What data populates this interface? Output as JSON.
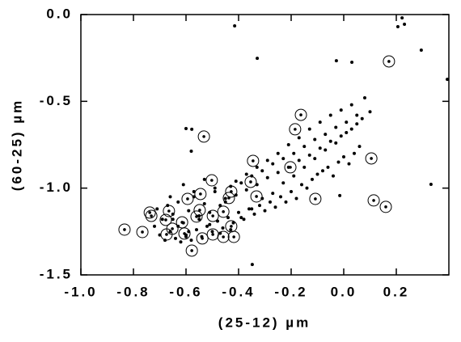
{
  "chart_data": {
    "type": "scatter",
    "xlabel": "(25-12)   µm",
    "ylabel": "(60-25)   µm",
    "xlim": [
      -1.0,
      0.4
    ],
    "ylim": [
      -1.5,
      0
    ],
    "xticks": [
      {
        "value": -1.0,
        "label": "-1.0"
      },
      -0.8,
      -0.6,
      -0.4,
      -0.2,
      {
        "value": 0,
        "label": "0.0"
      },
      0.2
    ],
    "yticks": [
      {
        "value": 0,
        "label": "0.0"
      },
      -0.5,
      {
        "value": -1.0,
        "label": "-1.0"
      },
      -1.5
    ],
    "series": [
      {
        "marker": "dot",
        "color": "#000000",
        "x": [
          -0.72,
          -0.7,
          -0.68,
          -0.66,
          -0.64,
          -0.62,
          -0.6,
          -0.58,
          -0.56,
          -0.54,
          -0.52,
          -0.5,
          -0.48,
          -0.46,
          -0.44,
          -0.42,
          -0.4,
          -0.38,
          -0.36,
          -0.34,
          -0.32,
          -0.3,
          -0.28,
          -0.26,
          -0.24,
          -0.22,
          -0.2,
          -0.18,
          -0.16,
          -0.14,
          -0.12,
          -0.1,
          -0.08,
          -0.06,
          -0.04,
          -0.02,
          0.0,
          0.02,
          0.04,
          0.06,
          -0.71,
          -0.69,
          -0.67,
          -0.65,
          -0.63,
          -0.61,
          -0.59,
          -0.57,
          -0.55,
          -0.53,
          -0.51,
          -0.49,
          -0.47,
          -0.45,
          -0.43,
          -0.41,
          -0.39,
          -0.37,
          -0.35,
          -0.33,
          -0.31,
          -0.29,
          -0.27,
          -0.25,
          -0.23,
          -0.21,
          -0.19,
          -0.17,
          -0.15,
          -0.13,
          -0.11,
          -0.09,
          -0.07,
          -0.05,
          -0.03,
          -0.01,
          0.01,
          0.03,
          0.05,
          0.07,
          -0.66,
          -0.63,
          -0.61,
          -0.59,
          -0.57,
          -0.55,
          -0.53,
          -0.51,
          -0.49,
          -0.47,
          -0.45,
          -0.43,
          -0.41,
          -0.39,
          -0.37,
          -0.35,
          -0.33,
          -0.31,
          -0.29,
          -0.27,
          -0.25,
          -0.23,
          -0.21,
          -0.19,
          -0.17,
          -0.15,
          -0.13,
          -0.11,
          -0.09,
          -0.07,
          -0.05,
          -0.03,
          -0.01,
          0.01,
          0.03,
          0.05,
          0.08,
          0.1,
          -0.65,
          -0.6,
          -0.415,
          -0.329,
          -0.028,
          0.031,
          0.206,
          0.222,
          0.231,
          0.295,
          0.394,
          0.332,
          -0.015,
          -0.6,
          -0.578,
          -0.348,
          -0.58
        ],
        "y": [
          -1.22,
          -1.27,
          -1.3,
          -1.25,
          -1.29,
          -1.31,
          -1.27,
          -1.3,
          -1.24,
          -1.28,
          -1.22,
          -1.25,
          -1.19,
          -1.23,
          -1.17,
          -1.2,
          -1.14,
          -1.18,
          -1.12,
          -1.15,
          -1.1,
          -1.13,
          -1.08,
          -1.11,
          -1.05,
          -1.08,
          -1.02,
          -1.06,
          -0.98,
          -1.0,
          -0.95,
          -0.92,
          -0.9,
          -0.88,
          -0.93,
          -0.85,
          -0.82,
          -0.86,
          -0.8,
          -0.76,
          -1.12,
          -1.18,
          -1.1,
          -1.15,
          -1.08,
          -1.2,
          -1.13,
          -1.05,
          -1.16,
          -1.09,
          -1.14,
          -1.02,
          -1.1,
          -1.06,
          -0.99,
          -1.04,
          -0.97,
          -1.01,
          -0.93,
          -0.98,
          -0.9,
          -0.94,
          -0.86,
          -0.91,
          -0.83,
          -0.88,
          -0.8,
          -0.84,
          -0.76,
          -0.81,
          -0.72,
          -0.77,
          -0.69,
          -0.73,
          -0.65,
          -0.7,
          -0.62,
          -0.66,
          -0.58,
          -0.6,
          -1.05,
          -1.22,
          -0.98,
          -1.25,
          -1.02,
          -1.18,
          -0.95,
          -1.21,
          -1.0,
          -1.26,
          -1.08,
          -1.24,
          -0.96,
          -1.17,
          -0.92,
          -1.12,
          -0.88,
          -1.06,
          -0.84,
          -1.03,
          -0.8,
          -0.97,
          -0.75,
          -0.93,
          -0.71,
          -0.88,
          -0.66,
          -0.83,
          -0.62,
          -0.78,
          -0.58,
          -0.74,
          -0.55,
          -0.68,
          -0.52,
          -0.63,
          -0.48,
          -0.56,
          -1.18,
          -1.28,
          -0.065,
          -0.252,
          -0.266,
          -0.275,
          -0.07,
          -0.019,
          -0.056,
          -0.205,
          -0.373,
          -0.978,
          -1.043,
          -0.657,
          -0.661,
          -1.44,
          -0.787
        ]
      },
      {
        "marker": "circled-dot",
        "color": "#000000",
        "x": [
          -0.834,
          -0.766,
          -0.738,
          -0.732,
          -0.665,
          -0.677,
          -0.674,
          -0.652,
          -0.606,
          -0.615,
          -0.594,
          -0.578,
          -0.56,
          -0.548,
          -0.502,
          -0.545,
          -0.538,
          -0.498,
          -0.498,
          -0.458,
          -0.458,
          -0.428,
          -0.418,
          -0.437,
          -0.428,
          -0.532,
          -0.345,
          -0.354,
          -0.332,
          -0.203,
          -0.163,
          -0.185,
          -0.108,
          0.105,
          0.114,
          0.16,
          0.172
        ],
        "y": [
          -1.239,
          -1.253,
          -1.141,
          -1.16,
          -1.132,
          -1.183,
          -1.267,
          -1.234,
          -1.262,
          -1.197,
          -1.062,
          -1.36,
          -1.164,
          -1.127,
          -0.955,
          -1.034,
          -1.29,
          -1.16,
          -1.267,
          -1.136,
          -1.281,
          -1.22,
          -1.281,
          -1.057,
          -1.02,
          -0.703,
          -0.843,
          -0.964,
          -1.048,
          -0.88,
          -0.578,
          -0.661,
          -1.062,
          -0.829,
          -1.071,
          -1.108,
          -0.27
        ]
      }
    ]
  }
}
